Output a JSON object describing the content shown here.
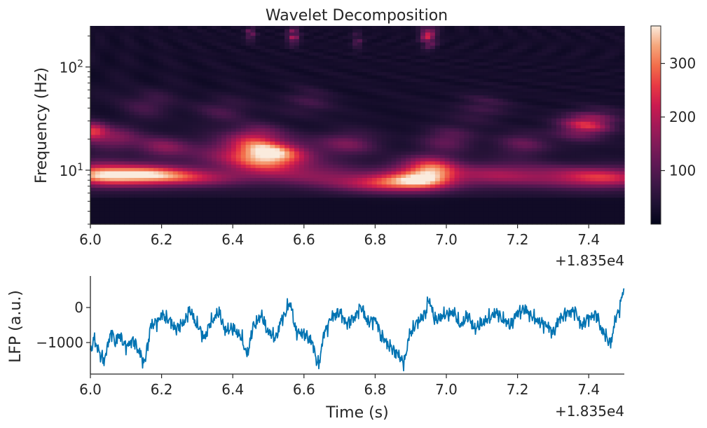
{
  "chart_data": [
    {
      "type": "heatmap",
      "title": "Wavelet Decomposition",
      "xlabel": "",
      "ylabel": "Frequency (Hz)",
      "xlim": [
        18356.0,
        18357.5
      ],
      "ylim": [
        3,
        250
      ],
      "yscale": "log",
      "x_offset_label": "+1.835e4",
      "x_tick_values": [
        6.0,
        6.2,
        6.4,
        6.6,
        6.8,
        7.0,
        7.2,
        7.4
      ],
      "x_tick_labels": [
        "6.0",
        "6.2",
        "6.4",
        "6.6",
        "6.8",
        "7.0",
        "7.2",
        "7.4"
      ],
      "y_tick_labels": [
        {
          "base": "10",
          "exp": "1",
          "value": 10
        },
        {
          "base": "10",
          "exp": "2",
          "value": 100
        }
      ],
      "colormap": "rocket",
      "colorbar": {
        "range": [
          0,
          370
        ],
        "tick_values": [
          100,
          200,
          300
        ],
        "tick_labels": [
          "100",
          "200",
          "300"
        ]
      },
      "blobs": [
        {
          "t": 0.5,
          "f": 14,
          "amp": 380,
          "st": 0.07,
          "sf": 0.1
        },
        {
          "t": 0.42,
          "f": 14.5,
          "amp": 110,
          "st": 0.11,
          "sf": 0.12
        },
        {
          "t": 0.12,
          "f": 9,
          "amp": 290,
          "st": 0.1,
          "sf": 0.07
        },
        {
          "t": 0.01,
          "f": 9.5,
          "amp": 180,
          "st": 0.06,
          "sf": 0.08
        },
        {
          "t": 0.28,
          "f": 8.5,
          "amp": 170,
          "st": 0.12,
          "sf": 0.06
        },
        {
          "t": 0.84,
          "f": 7.5,
          "amp": 240,
          "st": 0.1,
          "sf": 0.06
        },
        {
          "t": 0.96,
          "f": 10,
          "amp": 230,
          "st": 0.05,
          "sf": 0.1
        },
        {
          "t": 0.9,
          "f": 9.2,
          "amp": 140,
          "st": 0.06,
          "sf": 0.09
        },
        {
          "t": 1.16,
          "f": 9,
          "amp": 160,
          "st": 0.13,
          "sf": 0.08
        },
        {
          "t": 1.43,
          "f": 8.5,
          "amp": 220,
          "st": 0.1,
          "sf": 0.07
        },
        {
          "t": 0.64,
          "f": 9,
          "amp": 110,
          "st": 0.1,
          "sf": 0.08
        },
        {
          "t": 0.0,
          "f": 24,
          "amp": 270,
          "st": 0.03,
          "sf": 0.06
        },
        {
          "t": 0.07,
          "f": 20,
          "amp": 130,
          "st": 0.05,
          "sf": 0.08
        },
        {
          "t": 0.2,
          "f": 17,
          "amp": 140,
          "st": 0.05,
          "sf": 0.07
        },
        {
          "t": 0.47,
          "f": 22,
          "amp": 120,
          "st": 0.05,
          "sf": 0.07
        },
        {
          "t": 0.72,
          "f": 18,
          "amp": 110,
          "st": 0.06,
          "sf": 0.08
        },
        {
          "t": 1.0,
          "f": 20,
          "amp": 110,
          "st": 0.05,
          "sf": 0.08
        },
        {
          "t": 1.22,
          "f": 18,
          "amp": 100,
          "st": 0.05,
          "sf": 0.08
        },
        {
          "t": 1.41,
          "f": 30,
          "amp": 190,
          "st": 0.05,
          "sf": 0.07
        },
        {
          "t": 1.37,
          "f": 24,
          "amp": 110,
          "st": 0.05,
          "sf": 0.08
        },
        {
          "t": 0.15,
          "f": 45,
          "amp": 80,
          "st": 0.05,
          "sf": 0.09
        },
        {
          "t": 0.36,
          "f": 38,
          "amp": 80,
          "st": 0.05,
          "sf": 0.09
        },
        {
          "t": 0.6,
          "f": 45,
          "amp": 70,
          "st": 0.05,
          "sf": 0.09
        },
        {
          "t": 1.1,
          "f": 40,
          "amp": 70,
          "st": 0.05,
          "sf": 0.09
        },
        {
          "t": 0.57,
          "f": 200,
          "amp": 180,
          "st": 0.012,
          "sf": 0.06
        },
        {
          "t": 0.95,
          "f": 200,
          "amp": 270,
          "st": 0.014,
          "sf": 0.07
        },
        {
          "t": 0.45,
          "f": 210,
          "amp": 130,
          "st": 0.01,
          "sf": 0.05
        },
        {
          "t": 0.75,
          "f": 180,
          "amp": 90,
          "st": 0.01,
          "sf": 0.06
        }
      ]
    },
    {
      "type": "line",
      "title": "",
      "xlabel": "Time (s)",
      "ylabel": "LFP (a.u.)",
      "xlim": [
        18356.0,
        18357.5
      ],
      "ylim": [
        -1900,
        900
      ],
      "x_offset_label": "+1.835e4",
      "x_tick_values": [
        6.0,
        6.2,
        6.4,
        6.6,
        6.8,
        7.0,
        7.2,
        7.4
      ],
      "x_tick_labels": [
        "6.0",
        "6.2",
        "6.4",
        "6.6",
        "6.8",
        "7.0",
        "7.2",
        "7.4"
      ],
      "y_tick_values": [
        -1000,
        0
      ],
      "y_tick_labels": [
        "−1000",
        "0"
      ],
      "line_color": "#0173b2",
      "series": [
        {
          "name": "LFP",
          "anchor_x": [
            6.0,
            6.01,
            6.02,
            6.03,
            6.04,
            6.05,
            6.06,
            6.07,
            6.08,
            6.1,
            6.12,
            6.14,
            6.15,
            6.16,
            6.17,
            6.19,
            6.2,
            6.22,
            6.24,
            6.26,
            6.28,
            6.3,
            6.32,
            6.34,
            6.36,
            6.38,
            6.4,
            6.42,
            6.44,
            6.46,
            6.48,
            6.5,
            6.52,
            6.54,
            6.56,
            6.58,
            6.6,
            6.62,
            6.64,
            6.66,
            6.68,
            6.7,
            6.72,
            6.74,
            6.76,
            6.78,
            6.8,
            6.82,
            6.84,
            6.86,
            6.88,
            6.9,
            6.92,
            6.94,
            6.95,
            6.97,
            7.0,
            7.02,
            7.04,
            7.06,
            7.08,
            7.1,
            7.12,
            7.14,
            7.16,
            7.18,
            7.2,
            7.22,
            7.24,
            7.26,
            7.28,
            7.3,
            7.32,
            7.34,
            7.36,
            7.38,
            7.4,
            7.42,
            7.44,
            7.46,
            7.48,
            7.5
          ],
          "anchor_y": [
            -1300,
            -900,
            -1150,
            -1400,
            -1500,
            -1000,
            -700,
            -1000,
            -800,
            -1100,
            -950,
            -1300,
            -1600,
            -1150,
            -500,
            -400,
            -200,
            -350,
            -600,
            -450,
            -100,
            -500,
            -850,
            -400,
            -150,
            -650,
            -600,
            -800,
            -1300,
            -500,
            -250,
            -700,
            -850,
            -300,
            100,
            -700,
            -750,
            -950,
            -1600,
            -650,
            -250,
            -150,
            -450,
            -300,
            0,
            -400,
            -350,
            -850,
            -1100,
            -1300,
            -1550,
            -700,
            -400,
            -200,
            200,
            -350,
            -200,
            -150,
            -500,
            -250,
            -600,
            -450,
            -300,
            -150,
            -350,
            -500,
            -150,
            -50,
            -250,
            -400,
            -500,
            -700,
            -300,
            -150,
            -100,
            -500,
            -300,
            -200,
            -700,
            -1000,
            -200,
            500
          ]
        }
      ]
    }
  ]
}
